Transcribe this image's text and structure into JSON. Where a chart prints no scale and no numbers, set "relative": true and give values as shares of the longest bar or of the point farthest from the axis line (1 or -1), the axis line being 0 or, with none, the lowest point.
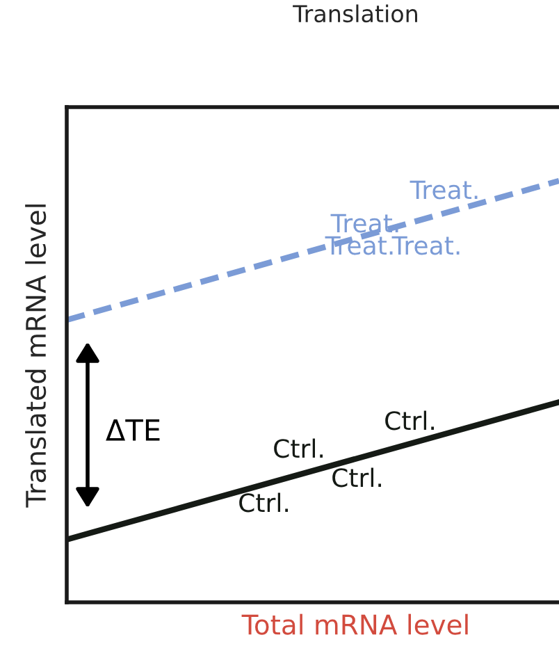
{
  "chart_data": {
    "type": "line",
    "title": "Translation",
    "xlabel": "Total mRNA level",
    "ylabel": "Translated mRNA level",
    "relative": true,
    "categories": [
      null,
      null
    ],
    "series": [
      {
        "color": "#7b9bd6",
        "values": [
          0.67,
          1.0
        ],
        "line_style": "dashed"
      },
      {
        "color": "#151a15",
        "values": [
          0.149,
          0.475
        ],
        "line_style": "solid"
      }
    ],
    "annotations": [
      "Treat.",
      "Treat.",
      "Treat.",
      "Treat.",
      "Ctrl.",
      "Ctrl.",
      "Ctrl.",
      "Ctrl.",
      "ΔTE"
    ],
    "marker": "none"
  }
}
